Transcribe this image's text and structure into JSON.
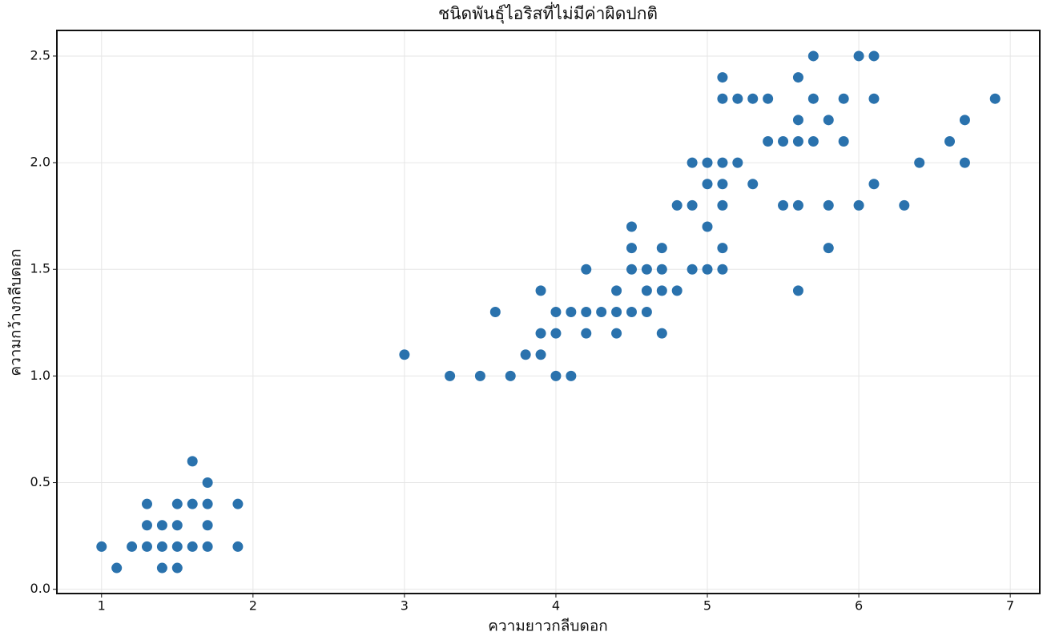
{
  "chart_data": {
    "type": "scatter",
    "title": "ชนิดพันธุ์ไอริสที่ไม่มีค่าผิดปกติ",
    "x_label": "ความยาวกลีบดอก",
    "y_label": "ความกว้างกลีบดอก",
    "x": [
      1.0,
      1.1,
      1.2,
      1.3,
      1.3,
      1.3,
      1.4,
      1.4,
      1.4,
      1.5,
      1.5,
      1.5,
      1.5,
      1.6,
      1.6,
      1.6,
      1.7,
      1.7,
      1.7,
      1.7,
      1.9,
      1.9,
      3.0,
      3.3,
      3.5,
      3.6,
      3.7,
      3.8,
      3.9,
      3.9,
      3.9,
      4.0,
      4.0,
      4.0,
      4.1,
      4.1,
      4.2,
      4.2,
      4.2,
      4.3,
      4.4,
      4.4,
      4.4,
      4.5,
      4.5,
      4.5,
      4.5,
      4.6,
      4.6,
      4.6,
      4.7,
      4.7,
      4.7,
      4.7,
      4.8,
      4.8,
      4.9,
      4.9,
      4.9,
      5.0,
      5.0,
      5.0,
      5.0,
      5.1,
      5.1,
      5.1,
      5.1,
      5.1,
      5.1,
      5.1,
      5.2,
      5.2,
      5.3,
      5.3,
      5.4,
      5.4,
      5.5,
      5.5,
      5.6,
      5.6,
      5.6,
      5.6,
      5.6,
      5.7,
      5.7,
      5.7,
      5.8,
      5.8,
      5.8,
      5.9,
      5.9,
      6.0,
      6.0,
      6.1,
      6.1,
      6.1,
      6.3,
      6.4,
      6.6,
      6.7,
      6.7,
      6.9
    ],
    "values": [
      0.2,
      0.1,
      0.2,
      0.2,
      0.3,
      0.4,
      0.1,
      0.2,
      0.3,
      0.1,
      0.2,
      0.3,
      0.4,
      0.2,
      0.4,
      0.6,
      0.2,
      0.3,
      0.4,
      0.5,
      0.2,
      0.4,
      1.1,
      1.0,
      1.0,
      1.3,
      1.0,
      1.1,
      1.1,
      1.2,
      1.4,
      1.0,
      1.2,
      1.3,
      1.0,
      1.3,
      1.2,
      1.3,
      1.5,
      1.3,
      1.2,
      1.3,
      1.4,
      1.3,
      1.5,
      1.6,
      1.7,
      1.3,
      1.4,
      1.5,
      1.2,
      1.4,
      1.5,
      1.6,
      1.4,
      1.8,
      1.5,
      1.8,
      2.0,
      1.5,
      1.7,
      1.9,
      2.0,
      1.5,
      1.6,
      1.8,
      1.9,
      2.0,
      2.3,
      2.4,
      2.0,
      2.3,
      1.9,
      2.3,
      2.1,
      2.3,
      1.8,
      2.1,
      1.4,
      1.8,
      2.1,
      2.2,
      2.4,
      2.1,
      2.3,
      2.5,
      1.6,
      1.8,
      2.2,
      2.1,
      2.3,
      1.8,
      2.5,
      1.9,
      2.3,
      2.5,
      1.8,
      2.0,
      2.1,
      2.0,
      2.2,
      2.3
    ],
    "color": "#2a72ad",
    "xlim": [
      0.705,
      7.195
    ],
    "ylim": [
      -0.02,
      2.62
    ],
    "xticks": [
      1,
      2,
      3,
      4,
      5,
      6,
      7
    ],
    "yticks": [
      {
        "value": 0,
        "label": "0.0"
      },
      0.5,
      {
        "value": 1,
        "label": "1.0"
      },
      1.5,
      {
        "value": 2,
        "label": "2.0"
      },
      2.5
    ],
    "grid": true
  }
}
